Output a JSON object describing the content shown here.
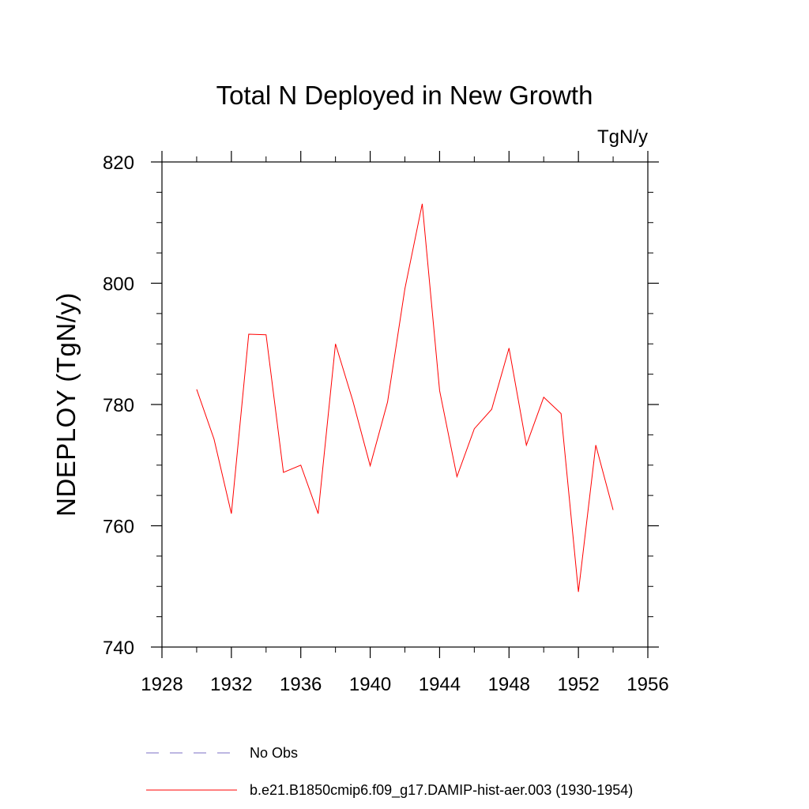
{
  "chart_data": {
    "type": "line",
    "title": "Total N Deployed in New Growth",
    "units_label": "TgN/y",
    "xlabel": "",
    "ylabel": "NDEPLOY  (TgN/y)",
    "xlim": [
      1928,
      1956
    ],
    "ylim": [
      740,
      820
    ],
    "x_ticks": [
      1928,
      1932,
      1936,
      1940,
      1944,
      1948,
      1952,
      1956
    ],
    "y_ticks": [
      740,
      760,
      780,
      800,
      820
    ],
    "y_minor_step": 5,
    "x_minor_step": 2,
    "grid": false,
    "legend_placement": "bottom",
    "series": [
      {
        "name": "b.e21.B1850cmip6.f09_g17.DAMIP-hist-aer.003 (1930-1954)",
        "color": "#ff0000",
        "style": "solid",
        "x": [
          1930,
          1931,
          1932,
          1933,
          1934,
          1935,
          1936,
          1937,
          1938,
          1939,
          1940,
          1941,
          1942,
          1943,
          1944,
          1945,
          1946,
          1947,
          1948,
          1949,
          1950,
          1951,
          1952,
          1953,
          1954
        ],
        "y": [
          782.5,
          774.3,
          762.0,
          791.6,
          791.5,
          768.8,
          770.0,
          762.0,
          790.0,
          780.6,
          769.9,
          780.4,
          799.1,
          813.1,
          782.3,
          768.1,
          776.0,
          779.2,
          789.3,
          773.3,
          781.2,
          778.5,
          749.1,
          773.3,
          762.6
        ]
      }
    ],
    "legend": [
      {
        "label": "No Obs",
        "color": "#7b6fc4",
        "style": "dashed"
      },
      {
        "label": "b.e21.B1850cmip6.f09_g17.DAMIP-hist-aer.003 (1930-1954)",
        "color": "#ff0000",
        "style": "solid"
      }
    ]
  }
}
